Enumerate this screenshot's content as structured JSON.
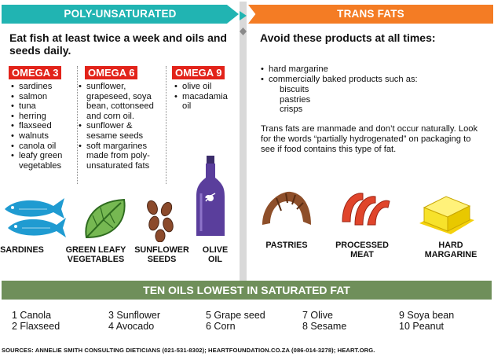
{
  "left_header": "POLY-UNSATURATED",
  "right_header": "TRANS FATS",
  "left_intro": "Eat fish at least twice a week and oils and seeds daily.",
  "right_intro": "Avoid these products at all times:",
  "omega3": {
    "label": "OMEGA 3",
    "items": [
      "sardines",
      "salmon",
      "tuna",
      "herring",
      "flaxseed",
      "walnuts",
      "canola oil",
      "leafy green vegetables"
    ]
  },
  "omega6": {
    "label": "OMEGA 6",
    "items": [
      "sunflower, grapeseed, soya bean, cottonseed and corn oil.",
      "sunflower & sesame seeds",
      "soft margarines made from poly-unsaturated fats"
    ]
  },
  "omega9": {
    "label": "OMEGA 9",
    "items": [
      "olive oil",
      "macadamia oil"
    ]
  },
  "trans": {
    "items": [
      "hard margarine",
      "commercially baked products such as:"
    ],
    "sub_items": [
      "biscuits",
      "pastries",
      "crisps"
    ],
    "note": "Trans fats are manmade and don’t occur naturally. Look for the words “partially hydrogenated” on packaging to see if food contains this type of fat."
  },
  "captions": {
    "sardines": "SARDINES",
    "greens": "GREEN LEAFY VEGETABLES",
    "seeds": "SUNFLOWER SEEDS",
    "olive": "OLIVE OIL",
    "pastries": "PASTRIES",
    "meat": "PROCESSED MEAT",
    "margarine": "HARD MARGARINE"
  },
  "band_title": "TEN OILS LOWEST IN SATURATED FAT",
  "oils": [
    "1 Canola",
    "2 Flaxseed",
    "3 Sunflower",
    "4 Avocado",
    "5 Grape seed",
    "6 Corn",
    "7 Olive",
    "8 Sesame",
    "9 Soya bean",
    "10 Peanut"
  ],
  "source": "SOURCES: ANNELIE SMITH CONSULTING DIETICIANS (021-531-8302); HEARTFOUNDATION.CO.ZA (086-014-3278); HEART.ORG.",
  "colors": {
    "teal": "#21b4b2",
    "orange": "#f47c24",
    "red": "#e2231a",
    "green_band": "#6f8f5a",
    "fish": "#1f9bd1",
    "meat": "#e0452b",
    "butter": "#f7e22b"
  },
  "icons": [
    "fish-icon",
    "leaf-icon",
    "seeds-icon",
    "olive-oil-bottle-icon",
    "croissant-icon",
    "sausage-icon",
    "butter-icon"
  ]
}
